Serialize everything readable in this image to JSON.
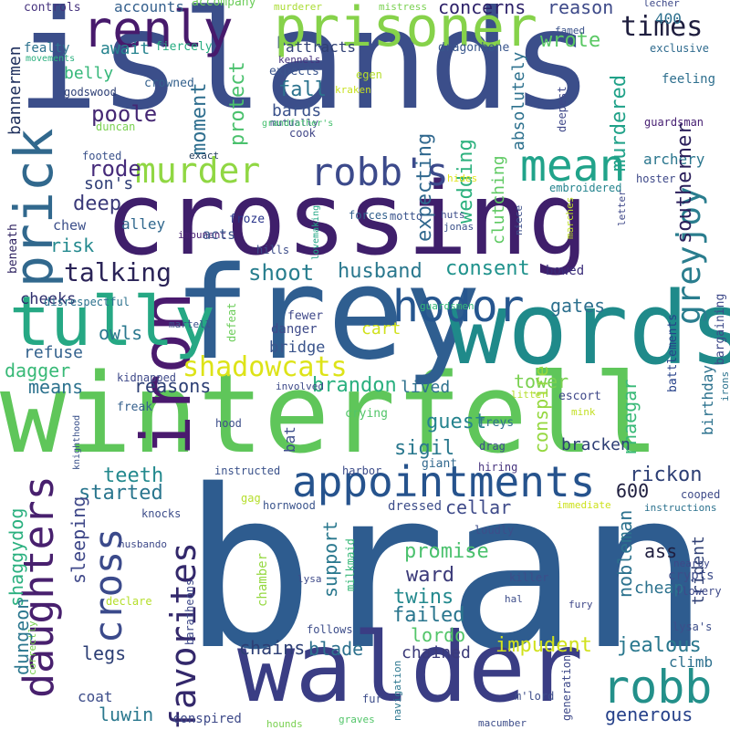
{
  "words": [
    {
      "text": "islands",
      "color": "#3b4e8a"
    },
    {
      "text": "bran",
      "color": "#2e5c8f"
    },
    {
      "text": "winterfell",
      "color": "#5fc65a"
    },
    {
      "text": "crossing",
      "color": "#3f1f6b"
    },
    {
      "text": "frey",
      "color": "#2f5e90"
    },
    {
      "text": "words",
      "color": "#1f8a8a"
    },
    {
      "text": "walder",
      "color": "#3a3d84"
    },
    {
      "text": "prisoner",
      "color": "#86d24a"
    },
    {
      "text": "iron",
      "color": "#4a1a6e"
    },
    {
      "text": "appointments",
      "color": "#26538d"
    },
    {
      "text": "tully",
      "color": "#26a884"
    },
    {
      "text": "renly",
      "color": "#471a6c"
    },
    {
      "text": "daughters",
      "color": "#48206e"
    },
    {
      "text": "favorites",
      "color": "#33286b"
    },
    {
      "text": "robb's",
      "color": "#3c4a8b"
    },
    {
      "text": "murder",
      "color": "#90d743"
    },
    {
      "text": "hodor",
      "color": "#26568f"
    },
    {
      "text": "mean",
      "color": "#21a38a"
    },
    {
      "text": "prick",
      "color": "#31688d"
    },
    {
      "text": "robb",
      "color": "#23908a"
    },
    {
      "text": "shadowcats",
      "color": "#dde318"
    },
    {
      "text": "greyjoy",
      "color": "#2a7d8e"
    },
    {
      "text": "cross",
      "color": "#3b4a8b"
    },
    {
      "text": "times",
      "color": "#1f1e3f"
    },
    {
      "text": "talking",
      "color": "#2a2357"
    },
    {
      "text": "husband",
      "color": "#2a788e"
    },
    {
      "text": "consent",
      "color": "#1f928c"
    },
    {
      "text": "shoot",
      "color": "#287e8e"
    },
    {
      "text": "fall",
      "color": "#2c738e"
    },
    {
      "text": "poole",
      "color": "#452773"
    },
    {
      "text": "rode",
      "color": "#462b7a"
    },
    {
      "text": "wrote",
      "color": "#5ac864"
    },
    {
      "text": "reason",
      "color": "#3e4a89"
    },
    {
      "text": "concerns",
      "color": "#2d2169"
    },
    {
      "text": "accounts",
      "color": "#35608d"
    },
    {
      "text": "accompany",
      "color": "#6ccd5a"
    },
    {
      "text": "controls",
      "color": "#46337e"
    },
    {
      "text": "murderer",
      "color": "#aadc32"
    },
    {
      "text": "mistress",
      "color": "#7ad151"
    },
    {
      "text": "famed",
      "color": "#3b528b"
    },
    {
      "text": "lecher",
      "color": "#3e4989"
    },
    {
      "text": "400",
      "color": "#2d708e"
    },
    {
      "text": "bannermen",
      "color": "#1e2f5c"
    },
    {
      "text": "fealty",
      "color": "#2c728e"
    },
    {
      "text": "await",
      "color": "#25838e"
    },
    {
      "text": "fiercely",
      "color": "#27ad81"
    },
    {
      "text": "attracts",
      "color": "#2f3f74"
    },
    {
      "text": "dragonbone",
      "color": "#39568c"
    },
    {
      "text": "exclusive",
      "color": "#2f6b8e"
    },
    {
      "text": "movements",
      "color": "#2ab07f"
    },
    {
      "text": "belly",
      "color": "#35b779"
    },
    {
      "text": "kennels",
      "color": "#46337e"
    },
    {
      "text": "egen",
      "color": "#b5de2b"
    },
    {
      "text": "godswood",
      "color": "#2c3e74"
    },
    {
      "text": "crowned",
      "color": "#34618d"
    },
    {
      "text": "expects",
      "color": "#3a548c"
    },
    {
      "text": "kraken",
      "color": "#c8e020"
    },
    {
      "text": "feeling",
      "color": "#2e6f8e"
    },
    {
      "text": "protect",
      "color": "#4ac16d"
    },
    {
      "text": "bards",
      "color": "#3b528b"
    },
    {
      "text": "absolutely",
      "color": "#2d718e"
    },
    {
      "text": "deepest",
      "color": "#3f4889"
    },
    {
      "text": "murdered",
      "color": "#1fa188"
    },
    {
      "text": "guardsman",
      "color": "#482173"
    },
    {
      "text": "duncan",
      "color": "#7ad151"
    },
    {
      "text": "moment",
      "color": "#2e6e8e"
    },
    {
      "text": "mutually",
      "color": "#3d4e8a"
    },
    {
      "text": "cook",
      "color": "#404688"
    },
    {
      "text": "grandfather's",
      "color": "#46c06f"
    },
    {
      "text": "expecting",
      "color": "#30688e"
    },
    {
      "text": "wedding",
      "color": "#2cb17e"
    },
    {
      "text": "archery",
      "color": "#2a768e"
    },
    {
      "text": "son's",
      "color": "#2e3d76"
    },
    {
      "text": "exact",
      "color": "#1e3b5c"
    },
    {
      "text": "footed",
      "color": "#3b528b"
    },
    {
      "text": "hides",
      "color": "#e0e318"
    },
    {
      "text": "embroidered",
      "color": "#25848e"
    },
    {
      "text": "hoster",
      "color": "#3e4989"
    },
    {
      "text": "southerner",
      "color": "#2a1e5a"
    },
    {
      "text": "deep",
      "color": "#3b3a79"
    },
    {
      "text": "clutching",
      "color": "#5ec962"
    },
    {
      "text": "beneath",
      "color": "#2b1f5e"
    },
    {
      "text": "alley",
      "color": "#31688e"
    },
    {
      "text": "froze",
      "color": "#28348a"
    },
    {
      "text": "forces",
      "color": "#31608d"
    },
    {
      "text": "huts",
      "color": "#3d4d8a"
    },
    {
      "text": "jonas",
      "color": "#3b528b"
    },
    {
      "text": "niece",
      "color": "#3c4f8a"
    },
    {
      "text": "marches",
      "color": "#bddf26"
    },
    {
      "text": "lovemaking",
      "color": "#22a785"
    },
    {
      "text": "motto",
      "color": "#3a548c"
    },
    {
      "text": "letter",
      "color": "#3f4889"
    },
    {
      "text": "chew",
      "color": "#3c4f8a"
    },
    {
      "text": "impunent",
      "color": "#482173"
    },
    {
      "text": "acts",
      "color": "#3a548c"
    },
    {
      "text": "hills",
      "color": "#3d4d8a"
    },
    {
      "text": "risk",
      "color": "#23898e"
    },
    {
      "text": "gates",
      "color": "#2d708e"
    },
    {
      "text": "bowed",
      "color": "#3a2c79"
    },
    {
      "text": "cheeks",
      "color": "#2f2f6e"
    },
    {
      "text": "disrespectful",
      "color": "#2c728e"
    },
    {
      "text": "guardsmen",
      "color": "#35b779"
    },
    {
      "text": "martell",
      "color": "#3b528b"
    },
    {
      "text": "defeat",
      "color": "#6ccd5a"
    },
    {
      "text": "fewer",
      "color": "#3f4889"
    },
    {
      "text": "danger",
      "color": "#3e4a89"
    },
    {
      "text": "cart",
      "color": "#d0e11c"
    },
    {
      "text": "bargaining",
      "color": "#3e4989"
    },
    {
      "text": "battlements",
      "color": "#26418a"
    },
    {
      "text": "refuse",
      "color": "#33628d"
    },
    {
      "text": "owls",
      "color": "#2a788e"
    },
    {
      "text": "bridge",
      "color": "#3a548c"
    },
    {
      "text": "dagger",
      "color": "#38b977"
    },
    {
      "text": "kidnapped",
      "color": "#3e4989"
    },
    {
      "text": "means",
      "color": "#2c728e"
    },
    {
      "text": "reasons",
      "color": "#2c3e74"
    },
    {
      "text": "brandon",
      "color": "#2ab07f"
    },
    {
      "text": "lived",
      "color": "#2d718e"
    },
    {
      "text": "tower",
      "color": "#7ad151"
    },
    {
      "text": "conspire",
      "color": "#95d840"
    },
    {
      "text": "birthday",
      "color": "#2c728e"
    },
    {
      "text": "irons",
      "color": "#2c738e"
    },
    {
      "text": "litter",
      "color": "#b5de2b"
    },
    {
      "text": "escort",
      "color": "#3f4889"
    },
    {
      "text": "knighthood",
      "color": "#3b528b"
    },
    {
      "text": "freak",
      "color": "#35608d"
    },
    {
      "text": "involved",
      "color": "#3e4a89"
    },
    {
      "text": "rhaegar",
      "color": "#38b977"
    },
    {
      "text": "guest",
      "color": "#25838e"
    },
    {
      "text": "mink",
      "color": "#c2df23"
    },
    {
      "text": "hood",
      "color": "#3d4e8a"
    },
    {
      "text": "crying",
      "color": "#52c569"
    },
    {
      "text": "freys",
      "color": "#2e6f8e"
    },
    {
      "text": "sigil",
      "color": "#2a788e"
    },
    {
      "text": "bat",
      "color": "#3d4e8a"
    },
    {
      "text": "bracken",
      "color": "#2c3e74"
    },
    {
      "text": "drag",
      "color": "#3d4d8a"
    },
    {
      "text": "teeth",
      "color": "#23898e"
    },
    {
      "text": "giant",
      "color": "#31688e"
    },
    {
      "text": "instructed",
      "color": "#3b528b"
    },
    {
      "text": "harbor",
      "color": "#3d4d8a"
    },
    {
      "text": "hiring",
      "color": "#46337e"
    },
    {
      "text": "started",
      "color": "#2a768e"
    },
    {
      "text": "rickon",
      "color": "#2c3e74"
    },
    {
      "text": "gag",
      "color": "#b5de2b"
    },
    {
      "text": "hornwood",
      "color": "#3a548c"
    },
    {
      "text": "dressed",
      "color": "#3d4d8a"
    },
    {
      "text": "immediate",
      "color": "#cde11d"
    },
    {
      "text": "cellar",
      "color": "#3e4a89"
    },
    {
      "text": "cooped",
      "color": "#3e4a89"
    },
    {
      "text": "instructions",
      "color": "#2c728e"
    },
    {
      "text": "600",
      "color": "#1f1e3f"
    },
    {
      "text": "shaggydog",
      "color": "#2ab07f"
    },
    {
      "text": "sleeping",
      "color": "#3f4889"
    },
    {
      "text": "knocks",
      "color": "#3d4d8a"
    },
    {
      "text": "husbando",
      "color": "#3e4989"
    },
    {
      "text": "chamber",
      "color": "#95d840"
    },
    {
      "text": "milkmaid",
      "color": "#37b878"
    },
    {
      "text": "loudly",
      "color": "#3d4e8a"
    },
    {
      "text": "nobleman",
      "color": "#2c728e"
    },
    {
      "text": "nearby",
      "color": "#3e4989"
    },
    {
      "text": "ass",
      "color": "#1f1e3f"
    },
    {
      "text": "trident",
      "color": "#2f3f74"
    },
    {
      "text": "crypts",
      "color": "#3d4d8a"
    },
    {
      "text": "promise",
      "color": "#4ac16d"
    },
    {
      "text": "ward",
      "color": "#3b3a79"
    },
    {
      "text": "support",
      "color": "#2a788e"
    },
    {
      "text": "killer",
      "color": "#3d4d8a"
    },
    {
      "text": "cheap",
      "color": "#2c728e"
    },
    {
      "text": "flowery",
      "color": "#3e4a89"
    },
    {
      "text": "lysa",
      "color": "#3e4a89"
    },
    {
      "text": "twins",
      "color": "#23898e"
    },
    {
      "text": "declare",
      "color": "#b5de2b"
    },
    {
      "text": "hal",
      "color": "#3d4d8a"
    },
    {
      "text": "fury",
      "color": "#3f4889"
    },
    {
      "text": "lysa's",
      "color": "#3d4e8a"
    },
    {
      "text": "failed",
      "color": "#2a768e"
    },
    {
      "text": "lordo",
      "color": "#52c569"
    },
    {
      "text": "baratheons",
      "color": "#3e4989"
    },
    {
      "text": "impudent",
      "color": "#d0e11c"
    },
    {
      "text": "jealous",
      "color": "#2a788e"
    },
    {
      "text": "correctly",
      "color": "#7ad151"
    },
    {
      "text": "follows",
      "color": "#3d4d8a"
    },
    {
      "text": "chains",
      "color": "#2c3e74"
    },
    {
      "text": "blade",
      "color": "#2d718e"
    },
    {
      "text": "chained",
      "color": "#3b3a79"
    },
    {
      "text": "climb",
      "color": "#2d708e"
    },
    {
      "text": "dungeon",
      "color": "#2a768e"
    },
    {
      "text": "legs",
      "color": "#2c3e74"
    },
    {
      "text": "coat",
      "color": "#3d4d8a"
    },
    {
      "text": "luwin",
      "color": "#2a788e"
    },
    {
      "text": "conspired",
      "color": "#3e4a89"
    },
    {
      "text": "navigation",
      "color": "#2a768e"
    },
    {
      "text": "m'lord",
      "color": "#3d4d8a"
    },
    {
      "text": "generation",
      "color": "#3e4989"
    },
    {
      "text": "generous",
      "color": "#26418a"
    },
    {
      "text": "fur",
      "color": "#3d4d8a"
    },
    {
      "text": "graves",
      "color": "#52c569"
    },
    {
      "text": "hounds",
      "color": "#7ad151"
    },
    {
      "text": "macumber",
      "color": "#3d4d8a"
    }
  ]
}
